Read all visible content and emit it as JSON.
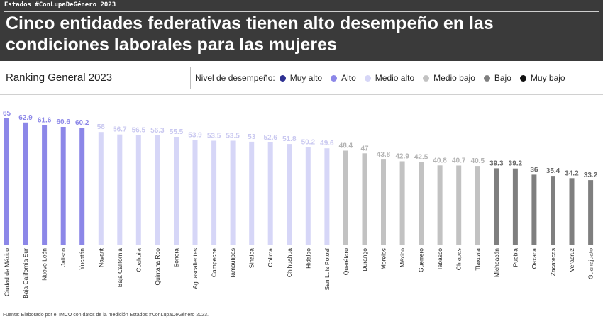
{
  "header": {
    "tag": "Estados #ConLupaDeGénero 2023",
    "title": "Cinco entidades federativas tienen alto desempeño en las condiciones laborales para las mujeres"
  },
  "subtitle": "Ranking General 2023",
  "legend": {
    "label": "Nivel de desempeño:",
    "items": [
      {
        "name": "Muy alto",
        "color": "#2e3192"
      },
      {
        "name": "Alto",
        "color": "#8c87e8"
      },
      {
        "name": "Medio alto",
        "color": "#d6d6f7"
      },
      {
        "name": "Medio bajo",
        "color": "#c2c2c2"
      },
      {
        "name": "Bajo",
        "color": "#7f7f7f"
      },
      {
        "name": "Muy bajo",
        "color": "#111111"
      }
    ]
  },
  "source": "Fuente: Elaborado por el IMCO  con datos de la medición Estados #ConLupaDeGénero 2023.",
  "chart_data": {
    "type": "bar",
    "categories": [
      "Ciudad de México",
      "Baja California Sur",
      "Nuevo León",
      "Jalisco",
      "Yucatán",
      "Nayarit",
      "Baja California",
      "Coahuila",
      "Quintana Roo",
      "Sonora",
      "Aguascalientes",
      "Campeche",
      "Tamaulipas",
      "Sinaloa",
      "Colima",
      "Chihuahua",
      "Hidalgo",
      "San Luis Potosí",
      "Querétaro",
      "Durango",
      "Morelos",
      "México",
      "Guerrero",
      "Tabasco",
      "Chiapas",
      "Tlaxcala",
      "Michoacán",
      "Puebla",
      "Oaxaca",
      "Zacatecas",
      "Veracruz",
      "Guanajuato"
    ],
    "values": [
      65,
      62.9,
      61.6,
      60.6,
      60.2,
      58,
      56.7,
      56.5,
      56.3,
      55.5,
      53.9,
      53.5,
      53.5,
      53,
      52.6,
      51.8,
      50.2,
      49.6,
      48.4,
      47,
      43.8,
      42.9,
      42.5,
      40.8,
      40.7,
      40.5,
      39.3,
      39.2,
      36,
      35.4,
      34.2,
      33.2
    ],
    "levels": [
      "Alto",
      "Alto",
      "Alto",
      "Alto",
      "Alto",
      "Medio alto",
      "Medio alto",
      "Medio alto",
      "Medio alto",
      "Medio alto",
      "Medio alto",
      "Medio alto",
      "Medio alto",
      "Medio alto",
      "Medio alto",
      "Medio alto",
      "Medio alto",
      "Medio alto",
      "Medio bajo",
      "Medio bajo",
      "Medio bajo",
      "Medio bajo",
      "Medio bajo",
      "Medio bajo",
      "Medio bajo",
      "Medio bajo",
      "Bajo",
      "Bajo",
      "Bajo",
      "Bajo",
      "Bajo",
      "Bajo"
    ],
    "ylim": [
      0,
      65
    ],
    "grid": false
  }
}
